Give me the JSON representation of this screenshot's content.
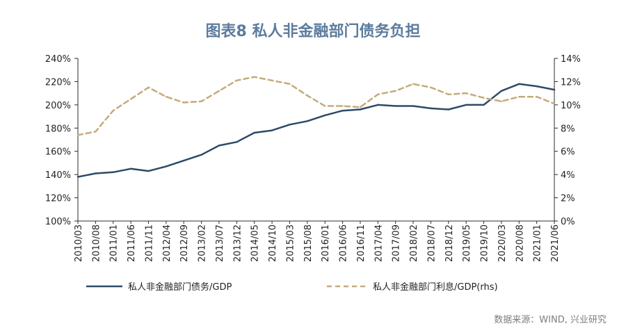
{
  "title": "图表8 私人非金融部门债务负担",
  "source": "数据来源：WIND, 兴业研究",
  "colors": {
    "debt": "#2d4a68",
    "interest": "#c4ab7a",
    "title": "#5d7c9e"
  },
  "chart_data": {
    "type": "line",
    "title": "图表8 私人非金融部门债务负担",
    "x": [
      "2010/03",
      "2010/08",
      "2011/01",
      "2011/06",
      "2011/11",
      "2012/04",
      "2012/09",
      "2013/02",
      "2013/07",
      "2013/12",
      "2014/05",
      "2014/10",
      "2015/03",
      "2015/08",
      "2016/01",
      "2016/06",
      "2016/11",
      "2017/04",
      "2017/09",
      "2018/02",
      "2018/07",
      "2018/12",
      "2019/05",
      "2019/10",
      "2020/03",
      "2020/08",
      "2021/01",
      "2021/06"
    ],
    "y_left_ticks": [
      "100%",
      "120%",
      "140%",
      "160%",
      "180%",
      "200%",
      "220%",
      "240%"
    ],
    "y_right_ticks": [
      "0%",
      "2%",
      "4%",
      "6%",
      "8%",
      "10%",
      "12%",
      "14%"
    ],
    "ylim_left": [
      100,
      240
    ],
    "ylim_right": [
      0,
      14
    ],
    "grid": false,
    "legend_position": "bottom",
    "series": [
      {
        "name": "私人非金融部门债务/GDP",
        "axis": "left",
        "style": "solid",
        "values": [
          138,
          141,
          142,
          145,
          143,
          147,
          152,
          157,
          165,
          168,
          176,
          178,
          183,
          186,
          191,
          195,
          196,
          200,
          199,
          199,
          197,
          196,
          200,
          200,
          212,
          218,
          216,
          213
        ]
      },
      {
        "name": "私人非金融部门利息/GDP(rhs)",
        "axis": "right",
        "style": "dashed",
        "values": [
          7.4,
          7.7,
          9.5,
          10.5,
          11.5,
          10.7,
          10.2,
          10.3,
          11.2,
          12.1,
          12.4,
          12.1,
          11.8,
          10.8,
          9.9,
          9.9,
          9.8,
          10.9,
          11.2,
          11.8,
          11.5,
          10.9,
          11.0,
          10.6,
          10.3,
          10.7,
          10.7,
          10.1
        ]
      }
    ]
  }
}
